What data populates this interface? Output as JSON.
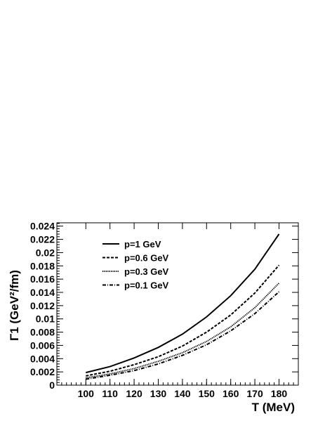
{
  "chart_data": {
    "type": "line",
    "title": "",
    "xlabel": "T (MeV)",
    "ylabel": "Γ1 (GeV²/fm)",
    "xlim": [
      88,
      188
    ],
    "ylim": [
      0,
      0.0245
    ],
    "xticks": [
      100,
      110,
      120,
      130,
      140,
      150,
      160,
      170,
      180
    ],
    "xtick_labels": [
      "100",
      "110",
      "120",
      "130",
      "140",
      "150",
      "160",
      "170",
      "180"
    ],
    "yticks": [
      0,
      0.002,
      0.004,
      0.006,
      0.008,
      0.01,
      0.012,
      0.014,
      0.016,
      0.018,
      0.02,
      0.022,
      0.024
    ],
    "ytick_labels": [
      "0",
      "0.002",
      "0.004",
      "0.006",
      "0.008",
      "0.01",
      "0.012",
      "0.014",
      "0.016",
      "0.018",
      "0.02",
      "0.022",
      "0.024"
    ],
    "grid": false,
    "legend_position": "top-left",
    "x": [
      100,
      110,
      120,
      130,
      140,
      150,
      160,
      170,
      180
    ],
    "series": [
      {
        "name": "p=1 GeV",
        "style": "solid",
        "values": [
          0.0019,
          0.0028,
          0.0041,
          0.0057,
          0.0077,
          0.0103,
          0.0135,
          0.0175,
          0.0228
        ]
      },
      {
        "name": "p=0.6 GeV",
        "style": "dashed",
        "values": [
          0.0014,
          0.0021,
          0.0031,
          0.0043,
          0.0059,
          0.008,
          0.0106,
          0.0139,
          0.0181
        ]
      },
      {
        "name": "p=0.3 GeV",
        "style": "dotted",
        "values": [
          0.0011,
          0.0017,
          0.0025,
          0.0036,
          0.0049,
          0.0066,
          0.0088,
          0.0117,
          0.0154
        ]
      },
      {
        "name": "p=0.1 GeV",
        "style": "dashdot",
        "values": [
          0.0009,
          0.0015,
          0.0022,
          0.0032,
          0.0045,
          0.0061,
          0.0082,
          0.0108,
          0.0141
        ]
      }
    ]
  }
}
